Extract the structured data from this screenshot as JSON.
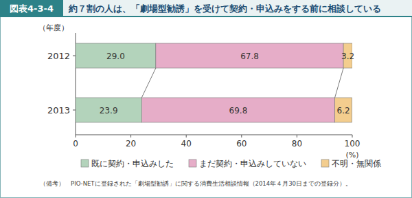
{
  "chart_data": {
    "type": "bar",
    "orientation": "horizontal",
    "stacked": true,
    "data_labels": true,
    "grid": false,
    "legend": "bottom",
    "figure_label": "図表4-3-4",
    "title": "約７割の人は、「劇場型勧誘」を受けて契約・申込みをする前に相談している",
    "y_label": "（年度）",
    "x_label": "(%)",
    "categories": [
      "2012",
      "2013"
    ],
    "series": [
      {
        "name": "既に契約・申込みした",
        "color": "#b3d3bb",
        "values": [
          29.0,
          23.9
        ],
        "value_labels": [
          "29.0",
          "23.9"
        ]
      },
      {
        "name": "まだ契約・申込みしていない",
        "color": "#e6adc8",
        "values": [
          67.8,
          69.8
        ],
        "value_labels": [
          "67.8",
          "69.8"
        ]
      },
      {
        "name": "不明・無関係",
        "color": "#f3cd8e",
        "values": [
          3.2,
          6.2
        ],
        "value_labels": [
          "3.2",
          "6.2"
        ]
      }
    ],
    "xlim": [
      0,
      100
    ],
    "xticks": [
      0,
      20,
      40,
      60,
      80,
      100
    ],
    "note": "（備考）　PIO-NETに登録された「劇場型勧誘」に関する消費生活相談情報（2014年４月30日までの登録分）。"
  }
}
